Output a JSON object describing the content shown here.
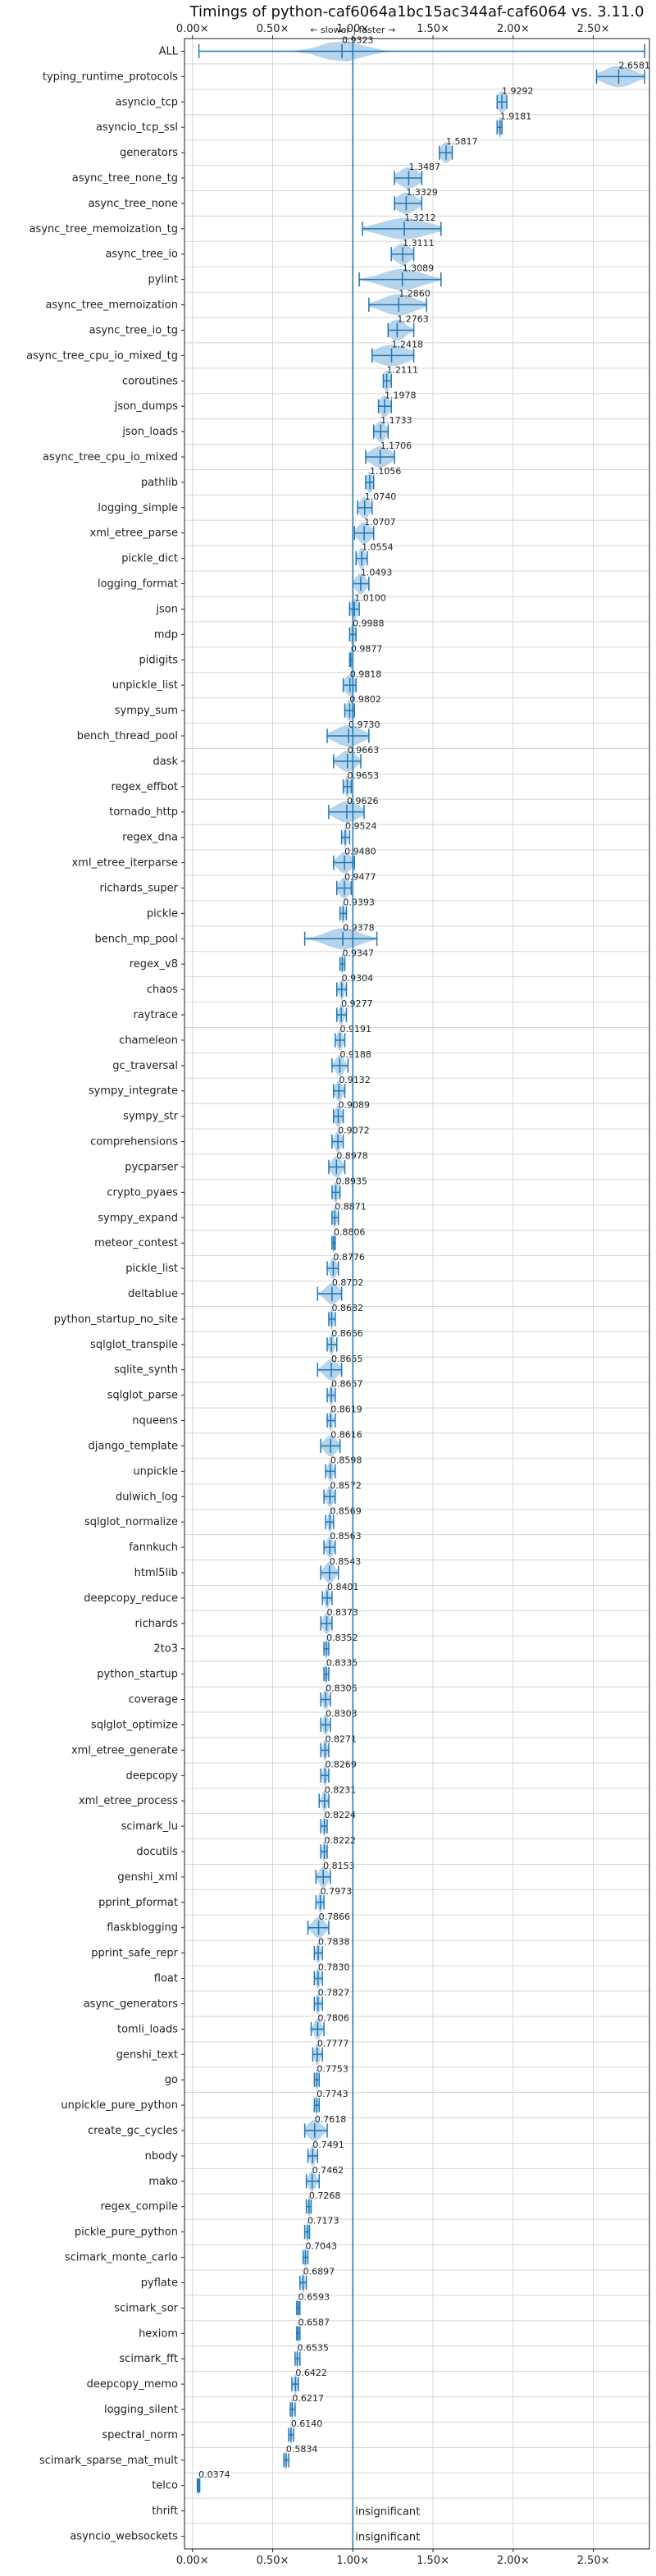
{
  "chart_data": {
    "type": "violin",
    "title": "Timings of python-caf6064a1bc15ac344af-caf6064 vs. 3.11.0",
    "direction_label": "← slower | faster →",
    "xlim": [
      -0.05,
      2.85
    ],
    "x_ticks": [
      "0.00×",
      "0.50×",
      "1.00×",
      "1.50×",
      "2.00×",
      "2.50×"
    ],
    "x_tick_values": [
      0,
      0.5,
      1.0,
      1.5,
      2.0,
      2.5
    ],
    "baseline": 1.0,
    "insignificant_label": "insignificant",
    "benchmarks": [
      {
        "name": "ALL",
        "mean": 0.9323,
        "label": "0.9323",
        "min": 0.04,
        "max": 2.82,
        "spread": 0.12
      },
      {
        "name": "typing_runtime_protocols",
        "mean": 2.6581,
        "label": "2.6581",
        "min": 2.52,
        "max": 2.82,
        "spread": 0.09
      },
      {
        "name": "asyncio_tcp",
        "mean": 1.9292,
        "label": "1.9292",
        "min": 1.9,
        "max": 1.96,
        "spread": 0.03
      },
      {
        "name": "asyncio_tcp_ssl",
        "mean": 1.9181,
        "label": "1.9181",
        "min": 1.9,
        "max": 1.93,
        "spread": 0.01
      },
      {
        "name": "generators",
        "mean": 1.5817,
        "label": "1.5817",
        "min": 1.54,
        "max": 1.62,
        "spread": 0.03
      },
      {
        "name": "async_tree_none_tg",
        "mean": 1.3487,
        "label": "1.3487",
        "min": 1.26,
        "max": 1.43,
        "spread": 0.06
      },
      {
        "name": "async_tree_none",
        "mean": 1.3329,
        "label": "1.3329",
        "min": 1.26,
        "max": 1.43,
        "spread": 0.06
      },
      {
        "name": "async_tree_memoization_tg",
        "mean": 1.3212,
        "label": "1.3212",
        "min": 1.06,
        "max": 1.55,
        "spread": 0.14
      },
      {
        "name": "async_tree_io",
        "mean": 1.3111,
        "label": "1.3111",
        "min": 1.24,
        "max": 1.38,
        "spread": 0.05
      },
      {
        "name": "pylint",
        "mean": 1.3089,
        "label": "1.3089",
        "min": 1.04,
        "max": 1.55,
        "spread": 0.12
      },
      {
        "name": "async_tree_memoization",
        "mean": 1.286,
        "label": "1.2860",
        "min": 1.1,
        "max": 1.46,
        "spread": 0.1
      },
      {
        "name": "async_tree_io_tg",
        "mean": 1.2763,
        "label": "1.2763",
        "min": 1.22,
        "max": 1.38,
        "spread": 0.05
      },
      {
        "name": "async_tree_cpu_io_mixed_tg",
        "mean": 1.2418,
        "label": "1.2418",
        "min": 1.12,
        "max": 1.38,
        "spread": 0.1
      },
      {
        "name": "coroutines",
        "mean": 1.2111,
        "label": "1.2111",
        "min": 1.19,
        "max": 1.24,
        "spread": 0.02
      },
      {
        "name": "json_dumps",
        "mean": 1.1978,
        "label": "1.1978",
        "min": 1.16,
        "max": 1.24,
        "spread": 0.03
      },
      {
        "name": "json_loads",
        "mean": 1.1733,
        "label": "1.1733",
        "min": 1.13,
        "max": 1.22,
        "spread": 0.03
      },
      {
        "name": "async_tree_cpu_io_mixed",
        "mean": 1.1706,
        "label": "1.1706",
        "min": 1.08,
        "max": 1.26,
        "spread": 0.06
      },
      {
        "name": "pathlib",
        "mean": 1.1056,
        "label": "1.1056",
        "min": 1.08,
        "max": 1.13,
        "spread": 0.02
      },
      {
        "name": "logging_simple",
        "mean": 1.074,
        "label": "1.0740",
        "min": 1.03,
        "max": 1.12,
        "spread": 0.03
      },
      {
        "name": "xml_etree_parse",
        "mean": 1.0707,
        "label": "1.0707",
        "min": 1.01,
        "max": 1.13,
        "spread": 0.04
      },
      {
        "name": "pickle_dict",
        "mean": 1.0554,
        "label": "1.0554",
        "min": 1.02,
        "max": 1.09,
        "spread": 0.02
      },
      {
        "name": "logging_format",
        "mean": 1.0493,
        "label": "1.0493",
        "min": 1.0,
        "max": 1.1,
        "spread": 0.03
      },
      {
        "name": "json",
        "mean": 1.01,
        "label": "1.0100",
        "min": 0.98,
        "max": 1.04,
        "spread": 0.02
      },
      {
        "name": "mdp",
        "mean": 0.9988,
        "label": "0.9988",
        "min": 0.98,
        "max": 1.02,
        "spread": 0.015
      },
      {
        "name": "pidigits",
        "mean": 0.9877,
        "label": "0.9877",
        "min": 0.98,
        "max": 1.0,
        "spread": 0.008
      },
      {
        "name": "unpickle_list",
        "mean": 0.9818,
        "label": "0.9818",
        "min": 0.94,
        "max": 1.02,
        "spread": 0.03
      },
      {
        "name": "sympy_sum",
        "mean": 0.9802,
        "label": "0.9802",
        "min": 0.95,
        "max": 1.01,
        "spread": 0.02
      },
      {
        "name": "bench_thread_pool",
        "mean": 0.973,
        "label": "0.9730",
        "min": 0.84,
        "max": 1.1,
        "spread": 0.08
      },
      {
        "name": "dask",
        "mean": 0.9663,
        "label": "0.9663",
        "min": 0.88,
        "max": 1.05,
        "spread": 0.05
      },
      {
        "name": "regex_effbot",
        "mean": 0.9653,
        "label": "0.9653",
        "min": 0.94,
        "max": 0.99,
        "spread": 0.015
      },
      {
        "name": "tornado_http",
        "mean": 0.9626,
        "label": "0.9626",
        "min": 0.85,
        "max": 1.07,
        "spread": 0.07
      },
      {
        "name": "regex_dna",
        "mean": 0.9524,
        "label": "0.9524",
        "min": 0.93,
        "max": 0.98,
        "spread": 0.01
      },
      {
        "name": "xml_etree_iterparse",
        "mean": 0.948,
        "label": "0.9480",
        "min": 0.88,
        "max": 1.01,
        "spread": 0.04
      },
      {
        "name": "richards_super",
        "mean": 0.9477,
        "label": "0.9477",
        "min": 0.9,
        "max": 0.99,
        "spread": 0.03
      },
      {
        "name": "pickle",
        "mean": 0.9393,
        "label": "0.9393",
        "min": 0.92,
        "max": 0.96,
        "spread": 0.01
      },
      {
        "name": "bench_mp_pool",
        "mean": 0.9378,
        "label": "0.9378",
        "min": 0.7,
        "max": 1.15,
        "spread": 0.1
      },
      {
        "name": "regex_v8",
        "mean": 0.9347,
        "label": "0.9347",
        "min": 0.92,
        "max": 0.95,
        "spread": 0.008
      },
      {
        "name": "chaos",
        "mean": 0.9304,
        "label": "0.9304",
        "min": 0.9,
        "max": 0.96,
        "spread": 0.015
      },
      {
        "name": "raytrace",
        "mean": 0.9277,
        "label": "0.9277",
        "min": 0.9,
        "max": 0.96,
        "spread": 0.015
      },
      {
        "name": "chameleon",
        "mean": 0.9191,
        "label": "0.9191",
        "min": 0.89,
        "max": 0.95,
        "spread": 0.015
      },
      {
        "name": "gc_traversal",
        "mean": 0.9188,
        "label": "0.9188",
        "min": 0.87,
        "max": 0.97,
        "spread": 0.025
      },
      {
        "name": "sympy_integrate",
        "mean": 0.9132,
        "label": "0.9132",
        "min": 0.88,
        "max": 0.95,
        "spread": 0.02
      },
      {
        "name": "sympy_str",
        "mean": 0.9089,
        "label": "0.9089",
        "min": 0.88,
        "max": 0.94,
        "spread": 0.02
      },
      {
        "name": "comprehensions",
        "mean": 0.9072,
        "label": "0.9072",
        "min": 0.87,
        "max": 0.94,
        "spread": 0.02
      },
      {
        "name": "pycparser",
        "mean": 0.8978,
        "label": "0.8978",
        "min": 0.85,
        "max": 0.95,
        "spread": 0.03
      },
      {
        "name": "crypto_pyaes",
        "mean": 0.8935,
        "label": "0.8935",
        "min": 0.87,
        "max": 0.92,
        "spread": 0.015
      },
      {
        "name": "sympy_expand",
        "mean": 0.8871,
        "label": "0.8871",
        "min": 0.87,
        "max": 0.91,
        "spread": 0.012
      },
      {
        "name": "meteor_contest",
        "mean": 0.8806,
        "label": "0.8806",
        "min": 0.87,
        "max": 0.89,
        "spread": 0.006
      },
      {
        "name": "pickle_list",
        "mean": 0.8776,
        "label": "0.8776",
        "min": 0.84,
        "max": 0.91,
        "spread": 0.02
      },
      {
        "name": "deltablue",
        "mean": 0.8702,
        "label": "0.8702",
        "min": 0.78,
        "max": 0.93,
        "spread": 0.04
      },
      {
        "name": "python_startup_no_site",
        "mean": 0.8682,
        "label": "0.8682",
        "min": 0.85,
        "max": 0.89,
        "spread": 0.01
      },
      {
        "name": "sqlglot_transpile",
        "mean": 0.8666,
        "label": "0.8666",
        "min": 0.84,
        "max": 0.9,
        "spread": 0.015
      },
      {
        "name": "sqlite_synth",
        "mean": 0.8655,
        "label": "0.8655",
        "min": 0.78,
        "max": 0.93,
        "spread": 0.04
      },
      {
        "name": "sqlglot_parse",
        "mean": 0.8657,
        "label": "0.8657",
        "min": 0.84,
        "max": 0.89,
        "spread": 0.012
      },
      {
        "name": "nqueens",
        "mean": 0.8619,
        "label": "0.8619",
        "min": 0.84,
        "max": 0.89,
        "spread": 0.012
      },
      {
        "name": "django_template",
        "mean": 0.8616,
        "label": "0.8616",
        "min": 0.8,
        "max": 0.92,
        "spread": 0.035
      },
      {
        "name": "unpickle",
        "mean": 0.8598,
        "label": "0.8598",
        "min": 0.83,
        "max": 0.89,
        "spread": 0.015
      },
      {
        "name": "dulwich_log",
        "mean": 0.8572,
        "label": "0.8572",
        "min": 0.82,
        "max": 0.89,
        "spread": 0.02
      },
      {
        "name": "sqlglot_normalize",
        "mean": 0.8569,
        "label": "0.8569",
        "min": 0.83,
        "max": 0.88,
        "spread": 0.012
      },
      {
        "name": "fannkuch",
        "mean": 0.8563,
        "label": "0.8563",
        "min": 0.82,
        "max": 0.89,
        "spread": 0.02
      },
      {
        "name": "html5lib",
        "mean": 0.8543,
        "label": "0.8543",
        "min": 0.8,
        "max": 0.91,
        "spread": 0.03
      },
      {
        "name": "deepcopy_reduce",
        "mean": 0.8401,
        "label": "0.8401",
        "min": 0.81,
        "max": 0.87,
        "spread": 0.015
      },
      {
        "name": "richards",
        "mean": 0.8373,
        "label": "0.8373",
        "min": 0.8,
        "max": 0.87,
        "spread": 0.02
      },
      {
        "name": "2to3",
        "mean": 0.8352,
        "label": "0.8352",
        "min": 0.82,
        "max": 0.85,
        "spread": 0.008
      },
      {
        "name": "python_startup",
        "mean": 0.8335,
        "label": "0.8335",
        "min": 0.82,
        "max": 0.85,
        "spread": 0.008
      },
      {
        "name": "coverage",
        "mean": 0.8306,
        "label": "0.8306",
        "min": 0.8,
        "max": 0.86,
        "spread": 0.015
      },
      {
        "name": "sqlglot_optimize",
        "mean": 0.8303,
        "label": "0.8303",
        "min": 0.8,
        "max": 0.86,
        "spread": 0.015
      },
      {
        "name": "xml_etree_generate",
        "mean": 0.8271,
        "label": "0.8271",
        "min": 0.8,
        "max": 0.85,
        "spread": 0.012
      },
      {
        "name": "deepcopy",
        "mean": 0.8269,
        "label": "0.8269",
        "min": 0.8,
        "max": 0.85,
        "spread": 0.012
      },
      {
        "name": "xml_etree_process",
        "mean": 0.8231,
        "label": "0.8231",
        "min": 0.79,
        "max": 0.85,
        "spread": 0.015
      },
      {
        "name": "scimark_lu",
        "mean": 0.8224,
        "label": "0.8224",
        "min": 0.8,
        "max": 0.84,
        "spread": 0.01
      },
      {
        "name": "docutils",
        "mean": 0.8222,
        "label": "0.8222",
        "min": 0.8,
        "max": 0.84,
        "spread": 0.01
      },
      {
        "name": "genshi_xml",
        "mean": 0.8153,
        "label": "0.8153",
        "min": 0.77,
        "max": 0.86,
        "spread": 0.025
      },
      {
        "name": "pprint_pformat",
        "mean": 0.7973,
        "label": "0.7973",
        "min": 0.77,
        "max": 0.82,
        "spread": 0.012
      },
      {
        "name": "flaskblogging",
        "mean": 0.7866,
        "label": "0.7866",
        "min": 0.72,
        "max": 0.85,
        "spread": 0.035
      },
      {
        "name": "pprint_safe_repr",
        "mean": 0.7838,
        "label": "0.7838",
        "min": 0.76,
        "max": 0.81,
        "spread": 0.012
      },
      {
        "name": "float",
        "mean": 0.783,
        "label": "0.7830",
        "min": 0.76,
        "max": 0.81,
        "spread": 0.012
      },
      {
        "name": "async_generators",
        "mean": 0.7827,
        "label": "0.7827",
        "min": 0.76,
        "max": 0.81,
        "spread": 0.012
      },
      {
        "name": "tomli_loads",
        "mean": 0.7806,
        "label": "0.7806",
        "min": 0.74,
        "max": 0.82,
        "spread": 0.02
      },
      {
        "name": "genshi_text",
        "mean": 0.7777,
        "label": "0.7777",
        "min": 0.75,
        "max": 0.81,
        "spread": 0.015
      },
      {
        "name": "go",
        "mean": 0.7753,
        "label": "0.7753",
        "min": 0.76,
        "max": 0.79,
        "spread": 0.008
      },
      {
        "name": "unpickle_pure_python",
        "mean": 0.7743,
        "label": "0.7743",
        "min": 0.76,
        "max": 0.79,
        "spread": 0.008
      },
      {
        "name": "create_gc_cycles",
        "mean": 0.7618,
        "label": "0.7618",
        "min": 0.7,
        "max": 0.84,
        "spread": 0.04
      },
      {
        "name": "nbody",
        "mean": 0.7491,
        "label": "0.7491",
        "min": 0.72,
        "max": 0.78,
        "spread": 0.015
      },
      {
        "name": "mako",
        "mean": 0.7462,
        "label": "0.7462",
        "min": 0.71,
        "max": 0.79,
        "spread": 0.02
      },
      {
        "name": "regex_compile",
        "mean": 0.7268,
        "label": "0.7268",
        "min": 0.71,
        "max": 0.74,
        "spread": 0.008
      },
      {
        "name": "pickle_pure_python",
        "mean": 0.7173,
        "label": "0.7173",
        "min": 0.7,
        "max": 0.73,
        "spread": 0.008
      },
      {
        "name": "scimark_monte_carlo",
        "mean": 0.7043,
        "label": "0.7043",
        "min": 0.69,
        "max": 0.72,
        "spread": 0.008
      },
      {
        "name": "pyflate",
        "mean": 0.6897,
        "label": "0.6897",
        "min": 0.67,
        "max": 0.71,
        "spread": 0.01
      },
      {
        "name": "scimark_sor",
        "mean": 0.6593,
        "label": "0.6593",
        "min": 0.65,
        "max": 0.67,
        "spread": 0.006
      },
      {
        "name": "hexiom",
        "mean": 0.6587,
        "label": "0.6587",
        "min": 0.65,
        "max": 0.67,
        "spread": 0.006
      },
      {
        "name": "scimark_fft",
        "mean": 0.6535,
        "label": "0.6535",
        "min": 0.64,
        "max": 0.67,
        "spread": 0.006
      },
      {
        "name": "deepcopy_memo",
        "mean": 0.6422,
        "label": "0.6422",
        "min": 0.62,
        "max": 0.66,
        "spread": 0.01
      },
      {
        "name": "logging_silent",
        "mean": 0.6217,
        "label": "0.6217",
        "min": 0.61,
        "max": 0.64,
        "spread": 0.008
      },
      {
        "name": "spectral_norm",
        "mean": 0.614,
        "label": "0.6140",
        "min": 0.6,
        "max": 0.63,
        "spread": 0.006
      },
      {
        "name": "scimark_sparse_mat_mult",
        "mean": 0.5834,
        "label": "0.5834",
        "min": 0.57,
        "max": 0.6,
        "spread": 0.006
      },
      {
        "name": "telco",
        "mean": 0.0374,
        "label": "0.0374",
        "min": 0.03,
        "max": 0.045,
        "spread": 0.003
      },
      {
        "name": "thrift",
        "mean": null,
        "label": "insignificant"
      },
      {
        "name": "asyncio_websockets",
        "mean": null,
        "label": "insignificant"
      }
    ]
  }
}
